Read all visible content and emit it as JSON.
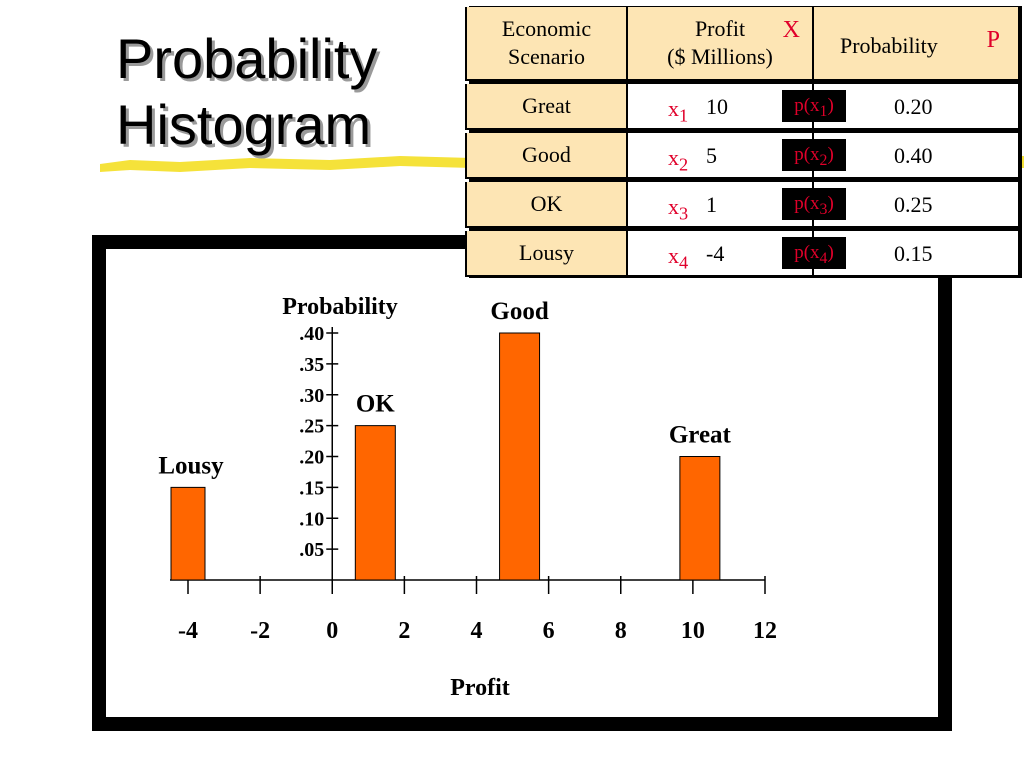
{
  "title": {
    "line1": "Probability",
    "line2": "Histogram"
  },
  "table": {
    "headers": {
      "scenario": "Economic Scenario",
      "profit_line1": "Profit",
      "profit_line2": "($ Millions)",
      "profit_var": "X",
      "probability": "Probability",
      "probability_var": "P"
    },
    "rows": [
      {
        "scenario": "Great",
        "x_label": "x",
        "x_sub": "1",
        "profit": "10",
        "p_label": "p(x",
        "p_sub": "1",
        "p_close": ")",
        "probability": "0.20"
      },
      {
        "scenario": "Good",
        "x_label": "x",
        "x_sub": "2",
        "profit": "5",
        "p_label": "p(x",
        "p_sub": "2",
        "p_close": ")",
        "probability": "0.40"
      },
      {
        "scenario": "OK",
        "x_label": "x",
        "x_sub": "3",
        "profit": "1",
        "p_label": "p(x",
        "p_sub": "3",
        "p_close": ")",
        "probability": "0.25"
      },
      {
        "scenario": "Lousy",
        "x_label": "x",
        "x_sub": "4",
        "profit": "-4",
        "p_label": "p(x",
        "p_sub": "4",
        "p_close": ")",
        "probability": "0.15"
      }
    ]
  },
  "colors": {
    "bar": "#ff6600",
    "accent_red": "#e0002a",
    "header_fill": "#fde5b4",
    "highlight": "#f5e23a"
  },
  "chart_data": {
    "type": "bar",
    "xlabel": "Profit",
    "ylabel": "Probability",
    "xlim": [
      -4,
      12
    ],
    "ylim": [
      0,
      0.4
    ],
    "x_ticks": [
      -4,
      -2,
      0,
      2,
      4,
      6,
      8,
      10,
      12
    ],
    "x_tick_labels": [
      "-4",
      "-2",
      "0",
      "2",
      "4",
      "6",
      "8",
      "10",
      "12"
    ],
    "y_ticks": [
      0.05,
      0.1,
      0.15,
      0.2,
      0.25,
      0.3,
      0.35,
      0.4
    ],
    "y_tick_labels": [
      ".05",
      ".10",
      ".15",
      ".20",
      ".25",
      ".30",
      ".35",
      ".40"
    ],
    "bars": [
      {
        "label": "Lousy",
        "x": -4,
        "value": 0.15
      },
      {
        "label": "OK",
        "x": 1,
        "value": 0.25
      },
      {
        "label": "Good",
        "x": 5,
        "value": 0.4
      },
      {
        "label": "Great",
        "x": 10,
        "value": 0.2
      }
    ]
  }
}
